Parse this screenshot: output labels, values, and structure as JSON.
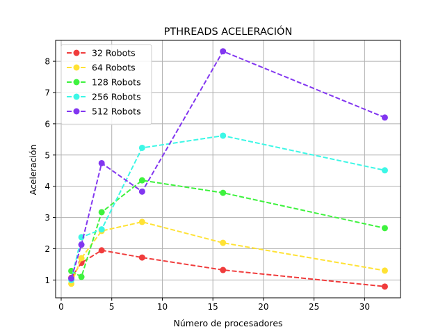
{
  "chart_data": {
    "type": "line",
    "title": "PTHREADS ACELERACIÓN",
    "xlabel": "Número de procesadores",
    "ylabel": "Aceleración",
    "xlim": [
      -0.55,
      33.55
    ],
    "ylim": [
      0.43,
      8.67
    ],
    "xticks": [
      0,
      5,
      10,
      15,
      20,
      25,
      30
    ],
    "yticks": [
      1,
      2,
      3,
      4,
      5,
      6,
      7,
      8
    ],
    "grid": true,
    "legend_position": "top-left",
    "x": [
      1,
      2,
      4,
      8,
      16,
      32
    ],
    "series": [
      {
        "name": "32 Robots",
        "color": "#f03c3c",
        "values": [
          1.07,
          1.55,
          1.95,
          1.72,
          1.32,
          0.79
        ]
      },
      {
        "name": "64 Robots",
        "color": "#ffe234",
        "values": [
          0.88,
          1.7,
          2.57,
          2.86,
          2.19,
          1.3
        ]
      },
      {
        "name": "128 Robots",
        "color": "#3ef23e",
        "values": [
          1.29,
          1.1,
          3.17,
          4.19,
          3.79,
          2.66
        ]
      },
      {
        "name": "256 Robots",
        "color": "#3cf7e6",
        "values": [
          1.0,
          2.37,
          2.62,
          5.23,
          5.62,
          4.51
        ]
      },
      {
        "name": "512 Robots",
        "color": "#8236f0",
        "values": [
          1.05,
          2.13,
          4.74,
          3.83,
          8.32,
          6.2
        ]
      }
    ]
  }
}
